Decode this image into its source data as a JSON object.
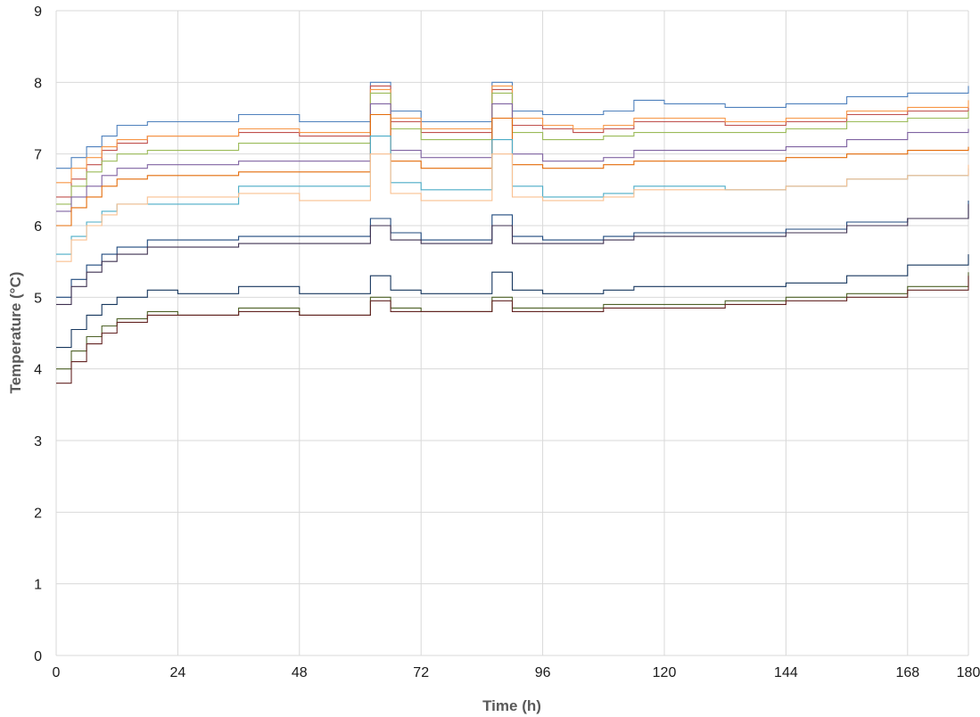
{
  "chart_data": {
    "type": "line",
    "title": "",
    "xlabel": "Time (h)",
    "ylabel": "Temperature (°C)",
    "xlim": [
      0,
      180
    ],
    "ylim": [
      0,
      9
    ],
    "xticks": [
      0,
      24,
      48,
      72,
      96,
      120,
      144,
      168,
      180
    ],
    "yticks": [
      0,
      1,
      2,
      3,
      4,
      5,
      6,
      7,
      8,
      9
    ],
    "grid": true,
    "legend": "none",
    "series": [
      {
        "color": "#4f81bd",
        "x": [
          0,
          3,
          6,
          9,
          12,
          18,
          24,
          30,
          36,
          48,
          60,
          62,
          66,
          72,
          84,
          86,
          90,
          96,
          102,
          108,
          114,
          120,
          132,
          144,
          156,
          168,
          180
        ],
        "y": [
          6.8,
          6.95,
          7.1,
          7.25,
          7.4,
          7.45,
          7.45,
          7.45,
          7.55,
          7.45,
          7.45,
          8.0,
          7.6,
          7.45,
          7.45,
          8.0,
          7.6,
          7.55,
          7.55,
          7.6,
          7.75,
          7.7,
          7.65,
          7.7,
          7.8,
          7.85,
          7.95
        ]
      },
      {
        "color": "#c0504d",
        "x": [
          0,
          3,
          6,
          9,
          12,
          18,
          24,
          30,
          36,
          48,
          60,
          62,
          66,
          72,
          84,
          86,
          90,
          96,
          102,
          108,
          114,
          120,
          132,
          144,
          156,
          168,
          180
        ],
        "y": [
          6.4,
          6.65,
          6.85,
          7.05,
          7.15,
          7.25,
          7.25,
          7.25,
          7.3,
          7.25,
          7.25,
          7.95,
          7.45,
          7.3,
          7.3,
          7.9,
          7.4,
          7.35,
          7.3,
          7.35,
          7.45,
          7.45,
          7.4,
          7.45,
          7.55,
          7.6,
          7.65
        ]
      },
      {
        "color": "#f79646",
        "x": [
          0,
          3,
          6,
          9,
          12,
          18,
          24,
          30,
          36,
          48,
          60,
          62,
          66,
          72,
          84,
          86,
          90,
          96,
          102,
          108,
          114,
          120,
          132,
          144,
          156,
          168,
          180
        ],
        "y": [
          6.6,
          6.8,
          6.95,
          7.1,
          7.2,
          7.25,
          7.25,
          7.25,
          7.35,
          7.3,
          7.3,
          7.9,
          7.5,
          7.35,
          7.35,
          7.95,
          7.5,
          7.4,
          7.35,
          7.4,
          7.5,
          7.5,
          7.45,
          7.5,
          7.6,
          7.65,
          7.75
        ]
      },
      {
        "color": "#9bbb59",
        "x": [
          0,
          3,
          6,
          9,
          12,
          18,
          24,
          30,
          36,
          48,
          60,
          62,
          66,
          72,
          84,
          86,
          90,
          96,
          102,
          108,
          114,
          120,
          132,
          144,
          156,
          168,
          180
        ],
        "y": [
          6.3,
          6.55,
          6.75,
          6.9,
          7.0,
          7.05,
          7.05,
          7.05,
          7.15,
          7.15,
          7.15,
          7.85,
          7.35,
          7.2,
          7.2,
          7.85,
          7.3,
          7.2,
          7.2,
          7.25,
          7.3,
          7.3,
          7.3,
          7.35,
          7.45,
          7.5,
          7.6
        ]
      },
      {
        "color": "#8064a2",
        "x": [
          0,
          3,
          6,
          9,
          12,
          18,
          24,
          30,
          36,
          48,
          60,
          62,
          66,
          72,
          84,
          86,
          90,
          96,
          102,
          108,
          114,
          120,
          132,
          144,
          156,
          168,
          180
        ],
        "y": [
          6.2,
          6.4,
          6.55,
          6.7,
          6.8,
          6.85,
          6.85,
          6.85,
          6.9,
          6.9,
          6.9,
          7.7,
          7.05,
          6.95,
          6.95,
          7.7,
          7.0,
          6.9,
          6.9,
          6.95,
          7.05,
          7.05,
          7.05,
          7.1,
          7.2,
          7.3,
          7.35
        ]
      },
      {
        "color": "#e46c0a",
        "x": [
          0,
          3,
          6,
          9,
          12,
          18,
          24,
          30,
          36,
          48,
          60,
          62,
          66,
          72,
          84,
          86,
          90,
          96,
          102,
          108,
          114,
          120,
          132,
          144,
          156,
          168,
          180
        ],
        "y": [
          6.0,
          6.25,
          6.4,
          6.55,
          6.65,
          6.7,
          6.7,
          6.7,
          6.75,
          6.75,
          6.75,
          7.55,
          6.9,
          6.8,
          6.8,
          7.5,
          6.85,
          6.8,
          6.8,
          6.85,
          6.9,
          6.9,
          6.9,
          6.95,
          7.0,
          7.05,
          7.1
        ]
      },
      {
        "color": "#4bacc6",
        "x": [
          0,
          3,
          6,
          9,
          12,
          18,
          24,
          30,
          36,
          48,
          60,
          62,
          66,
          72,
          84,
          86,
          90,
          96,
          102,
          108,
          114,
          120,
          132,
          144,
          156,
          168,
          180
        ],
        "y": [
          5.6,
          5.85,
          6.05,
          6.2,
          6.3,
          6.3,
          6.3,
          6.3,
          6.55,
          6.55,
          6.55,
          7.25,
          6.6,
          6.5,
          6.5,
          7.2,
          6.55,
          6.4,
          6.4,
          6.45,
          6.55,
          6.55,
          6.5,
          6.55,
          6.65,
          6.7,
          6.8
        ]
      },
      {
        "color": "#fac090",
        "x": [
          0,
          3,
          6,
          9,
          12,
          18,
          24,
          30,
          36,
          48,
          60,
          62,
          66,
          72,
          84,
          86,
          90,
          96,
          102,
          108,
          114,
          120,
          132,
          144,
          156,
          168,
          180
        ],
        "y": [
          5.5,
          5.8,
          6.0,
          6.15,
          6.3,
          6.4,
          6.4,
          6.4,
          6.45,
          6.35,
          6.35,
          7.0,
          6.45,
          6.35,
          6.35,
          7.0,
          6.4,
          6.35,
          6.35,
          6.4,
          6.5,
          6.5,
          6.5,
          6.55,
          6.65,
          6.7,
          6.85
        ]
      },
      {
        "color": "#1f497d",
        "x": [
          0,
          3,
          6,
          9,
          12,
          18,
          24,
          30,
          36,
          48,
          60,
          62,
          66,
          72,
          84,
          86,
          90,
          96,
          102,
          108,
          114,
          120,
          132,
          144,
          156,
          168,
          180
        ],
        "y": [
          5.0,
          5.25,
          5.45,
          5.6,
          5.7,
          5.8,
          5.8,
          5.8,
          5.85,
          5.85,
          5.85,
          6.1,
          5.9,
          5.8,
          5.8,
          6.15,
          5.85,
          5.8,
          5.8,
          5.85,
          5.9,
          5.9,
          5.9,
          5.95,
          6.05,
          6.1,
          6.35
        ]
      },
      {
        "color": "#3f3151",
        "x": [
          0,
          3,
          6,
          9,
          12,
          18,
          24,
          30,
          36,
          48,
          60,
          62,
          66,
          72,
          84,
          86,
          90,
          96,
          102,
          108,
          114,
          120,
          132,
          144,
          156,
          168,
          180
        ],
        "y": [
          4.9,
          5.15,
          5.35,
          5.5,
          5.6,
          5.7,
          5.7,
          5.7,
          5.75,
          5.75,
          5.75,
          6.0,
          5.8,
          5.75,
          5.75,
          6.0,
          5.75,
          5.75,
          5.75,
          5.8,
          5.85,
          5.85,
          5.85,
          5.9,
          6.0,
          6.1,
          6.3
        ]
      },
      {
        "color": "#17375e",
        "x": [
          0,
          3,
          6,
          9,
          12,
          18,
          24,
          30,
          36,
          48,
          60,
          62,
          66,
          72,
          84,
          86,
          90,
          96,
          102,
          108,
          114,
          120,
          132,
          144,
          156,
          168,
          180
        ],
        "y": [
          4.3,
          4.55,
          4.75,
          4.9,
          5.0,
          5.1,
          5.05,
          5.05,
          5.15,
          5.05,
          5.05,
          5.3,
          5.1,
          5.05,
          5.05,
          5.35,
          5.1,
          5.05,
          5.05,
          5.1,
          5.15,
          5.15,
          5.15,
          5.2,
          5.3,
          5.45,
          5.6
        ]
      },
      {
        "color": "#4f6228",
        "x": [
          0,
          3,
          6,
          9,
          12,
          18,
          24,
          30,
          36,
          48,
          60,
          62,
          66,
          72,
          84,
          86,
          90,
          96,
          102,
          108,
          114,
          120,
          132,
          144,
          156,
          168,
          180
        ],
        "y": [
          4.0,
          4.25,
          4.45,
          4.6,
          4.7,
          4.8,
          4.75,
          4.75,
          4.85,
          4.75,
          4.75,
          5.0,
          4.85,
          4.8,
          4.8,
          5.0,
          4.85,
          4.85,
          4.85,
          4.9,
          4.9,
          4.9,
          4.95,
          5.0,
          5.05,
          5.15,
          5.35
        ]
      },
      {
        "color": "#632423",
        "x": [
          0,
          3,
          6,
          9,
          12,
          18,
          24,
          30,
          36,
          48,
          60,
          62,
          66,
          72,
          84,
          86,
          90,
          96,
          102,
          108,
          114,
          120,
          132,
          144,
          156,
          168,
          180
        ],
        "y": [
          3.8,
          4.1,
          4.35,
          4.5,
          4.65,
          4.75,
          4.75,
          4.75,
          4.8,
          4.75,
          4.75,
          4.95,
          4.8,
          4.8,
          4.8,
          4.95,
          4.8,
          4.8,
          4.8,
          4.85,
          4.85,
          4.85,
          4.9,
          4.95,
          5.0,
          5.1,
          5.3
        ]
      }
    ]
  }
}
